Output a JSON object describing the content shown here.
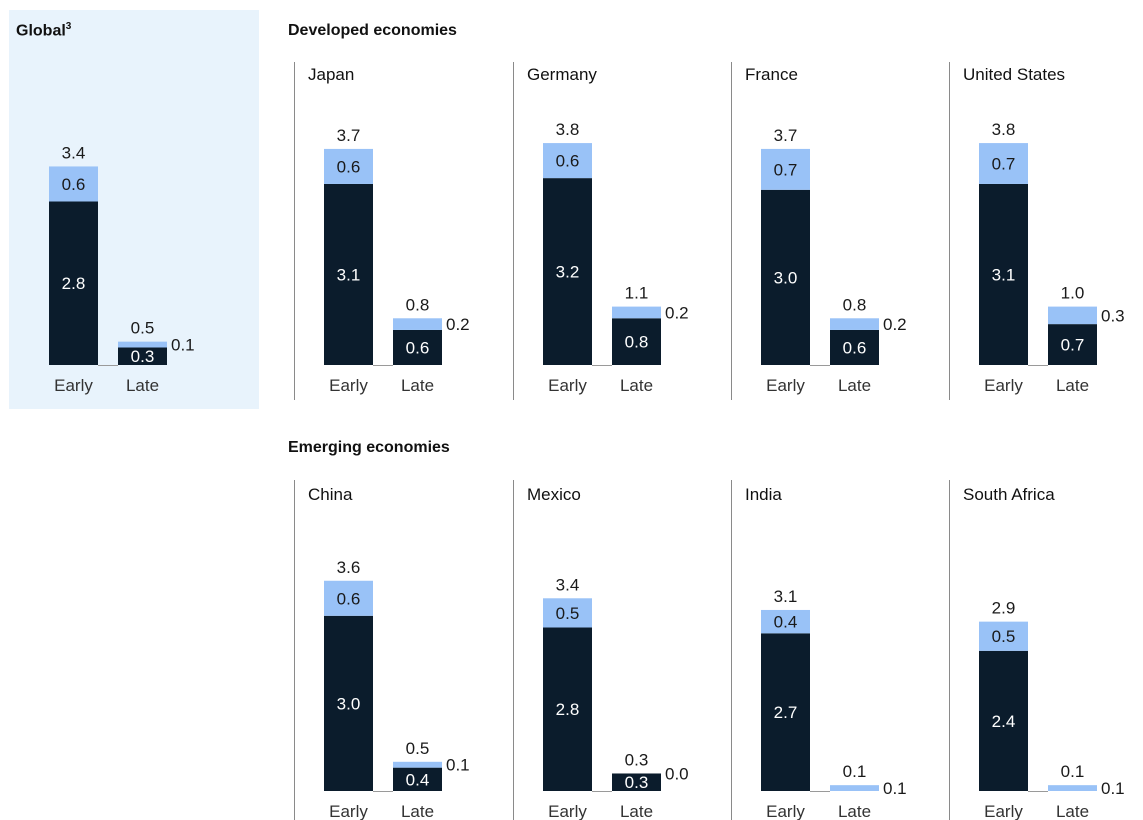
{
  "headings": {
    "global": "Global",
    "global_sup": "3",
    "developed": "Developed economies",
    "emerging": "Emerging economies"
  },
  "colors": {
    "dark": "#0b1c2c",
    "light": "#99c2f7",
    "panel_bg": "#e8f3fc",
    "divider": "#8a8a8a"
  },
  "chart_data": [
    {
      "type": "bar",
      "stacked": true,
      "group": "Global",
      "title": "",
      "categories": [
        "Early",
        "Late"
      ],
      "series": [
        {
          "values": [
            2.8,
            0.3
          ]
        },
        {
          "values": [
            0.6,
            0.1
          ]
        }
      ],
      "totals": [
        3.4,
        0.5
      ],
      "ylim": [
        0,
        3.8
      ]
    },
    {
      "type": "bar",
      "stacked": true,
      "group": "Developed economies",
      "title": "Japan",
      "categories": [
        "Early",
        "Late"
      ],
      "series": [
        {
          "values": [
            3.1,
            0.6
          ]
        },
        {
          "values": [
            0.6,
            0.2
          ]
        }
      ],
      "totals": [
        3.7,
        0.8
      ],
      "ylim": [
        0,
        3.8
      ]
    },
    {
      "type": "bar",
      "stacked": true,
      "group": "Developed economies",
      "title": "Germany",
      "categories": [
        "Early",
        "Late"
      ],
      "series": [
        {
          "values": [
            3.2,
            0.8
          ]
        },
        {
          "values": [
            0.6,
            0.2
          ]
        }
      ],
      "totals": [
        3.8,
        1.1
      ],
      "ylim": [
        0,
        3.8
      ]
    },
    {
      "type": "bar",
      "stacked": true,
      "group": "Developed economies",
      "title": "France",
      "categories": [
        "Early",
        "Late"
      ],
      "series": [
        {
          "values": [
            3.0,
            0.6
          ]
        },
        {
          "values": [
            0.7,
            0.2
          ]
        }
      ],
      "totals": [
        3.7,
        0.8
      ],
      "ylim": [
        0,
        3.8
      ]
    },
    {
      "type": "bar",
      "stacked": true,
      "group": "Developed economies",
      "title": "United States",
      "categories": [
        "Early",
        "Late"
      ],
      "series": [
        {
          "values": [
            3.1,
            0.7
          ]
        },
        {
          "values": [
            0.7,
            0.3
          ]
        }
      ],
      "totals": [
        3.8,
        1.0
      ],
      "ylim": [
        0,
        3.8
      ]
    },
    {
      "type": "bar",
      "stacked": true,
      "group": "Emerging economies",
      "title": "China",
      "categories": [
        "Early",
        "Late"
      ],
      "series": [
        {
          "values": [
            3.0,
            0.4
          ]
        },
        {
          "values": [
            0.6,
            0.1
          ]
        }
      ],
      "totals": [
        3.6,
        0.5
      ],
      "ylim": [
        0,
        3.8
      ]
    },
    {
      "type": "bar",
      "stacked": true,
      "group": "Emerging economies",
      "title": "Mexico",
      "categories": [
        "Early",
        "Late"
      ],
      "series": [
        {
          "values": [
            2.8,
            0.3
          ]
        },
        {
          "values": [
            0.5,
            0.0
          ]
        }
      ],
      "totals": [
        3.4,
        0.3
      ],
      "ylim": [
        0,
        3.8
      ]
    },
    {
      "type": "bar",
      "stacked": true,
      "group": "Emerging economies",
      "title": "India",
      "categories": [
        "Early",
        "Late"
      ],
      "series": [
        {
          "values": [
            2.7,
            0.0
          ]
        },
        {
          "values": [
            0.4,
            0.1
          ]
        }
      ],
      "totals": [
        3.1,
        0.1
      ],
      "ylim": [
        0,
        3.8
      ]
    },
    {
      "type": "bar",
      "stacked": true,
      "group": "Emerging economies",
      "title": "South Africa",
      "categories": [
        "Early",
        "Late"
      ],
      "series": [
        {
          "values": [
            2.4,
            0.0
          ]
        },
        {
          "values": [
            0.5,
            0.1
          ]
        }
      ],
      "totals": [
        2.9,
        0.1
      ],
      "ylim": [
        0,
        3.8
      ]
    }
  ]
}
